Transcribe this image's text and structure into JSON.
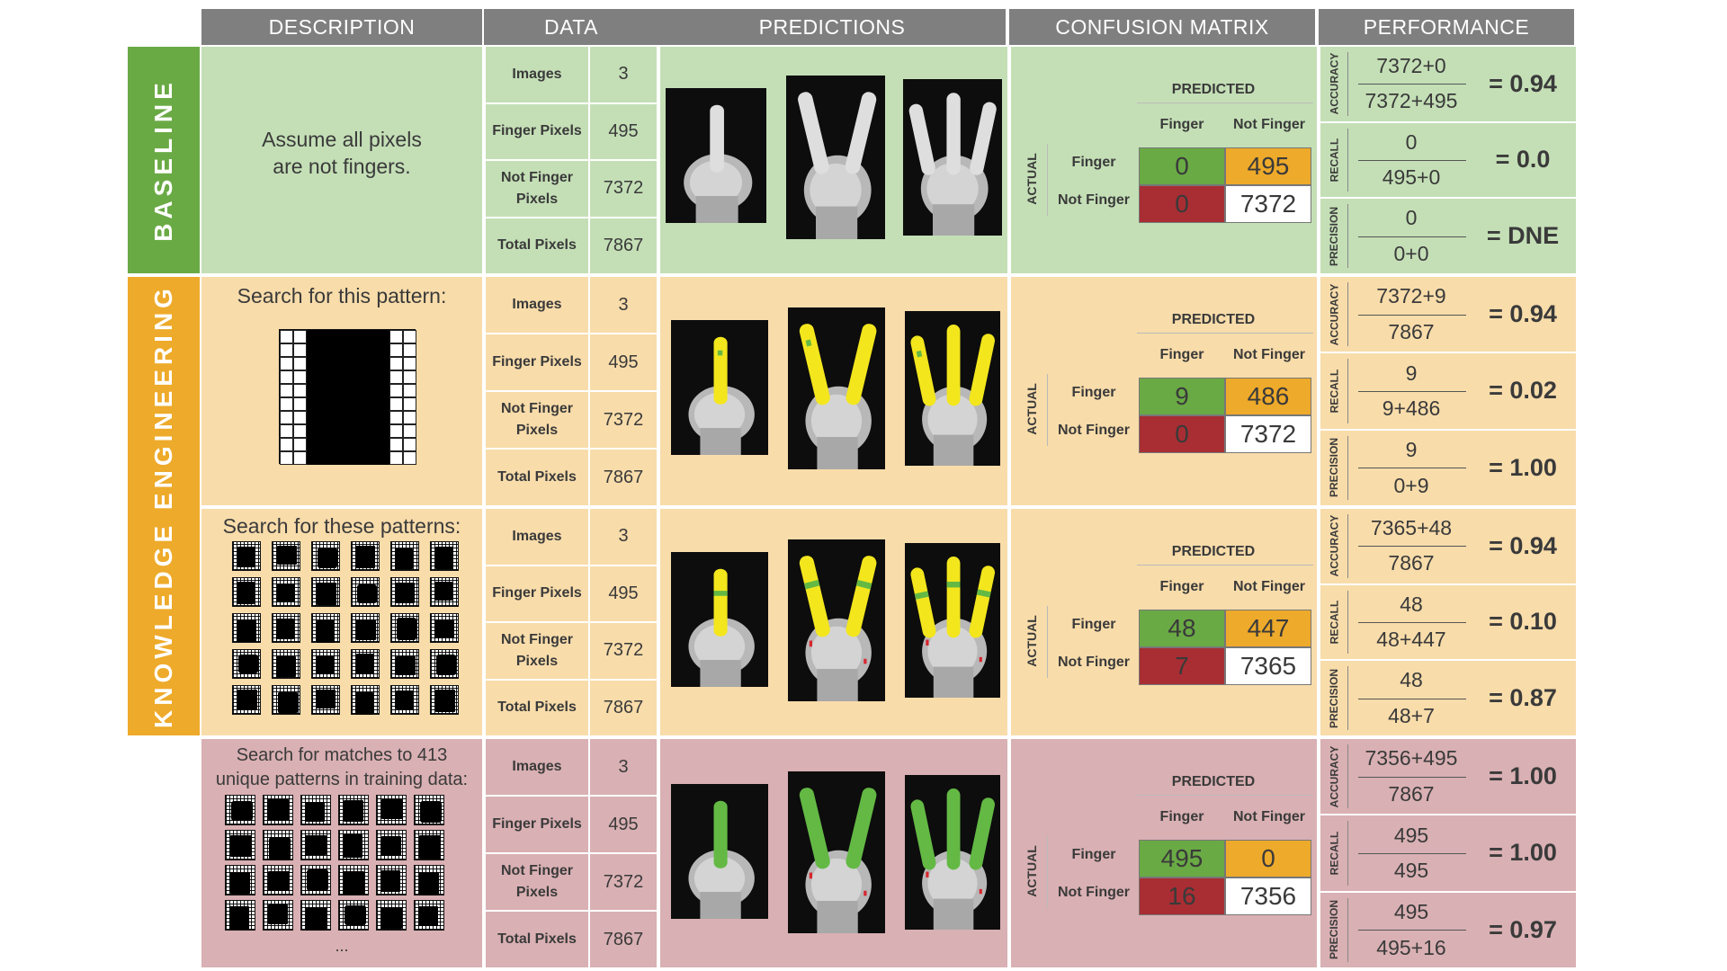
{
  "headers": [
    "DESCRIPTION",
    "DATA",
    "PREDICTIONS",
    "CONFUSION MATRIX",
    "PERFORMANCE"
  ],
  "side_labels": {
    "baseline": "BASELINE",
    "knowledge": "KNOWLEDGE ENGINEERING"
  },
  "colors": {
    "header": "#7f7f7f",
    "baseline_side": "#6aaa45",
    "ke_side": "#eeaa2a",
    "baseline_bg": "#c4dfb6",
    "ke_bg": "#f8dcaa",
    "ml_bg": "#d9b0b3",
    "tp": "#6aaa45",
    "fn": "#eeaa2a",
    "fp": "#a82e33",
    "tn": "#ffffff",
    "pred_yellow": "#f3e61d",
    "pred_green": "#63b944",
    "pred_red": "#d8262e"
  },
  "data_labels": {
    "images": "Images",
    "finger": "Finger Pixels",
    "not_finger": "Not Finger Pixels",
    "total": "Total Pixels"
  },
  "cm_labels": {
    "predicted": "PREDICTED",
    "actual": "ACTUAL",
    "finger": "Finger",
    "not_finger": "Not Finger"
  },
  "perf_labels": {
    "accuracy": "ACCURACY",
    "recall": "RECALL",
    "precision": "PRECISION"
  },
  "rows": [
    {
      "description": "Assume all pixels are not fingers.",
      "data": {
        "images": "3",
        "finger": "495",
        "not_finger": "7372",
        "total": "7867"
      },
      "cm": {
        "tp": "0",
        "fn": "495",
        "fp": "0",
        "tn": "7372"
      },
      "perf": {
        "accuracy": {
          "num": "7372+0",
          "den": "7372+495",
          "result": "= 0.94"
        },
        "recall": {
          "num": "0",
          "den": "495+0",
          "result": "= 0.0"
        },
        "precision": {
          "num": "0",
          "den": "0+0",
          "result": "= DNE"
        }
      }
    },
    {
      "description": "Search for this pattern:",
      "data": {
        "images": "3",
        "finger": "495",
        "not_finger": "7372",
        "total": "7867"
      },
      "cm": {
        "tp": "9",
        "fn": "486",
        "fp": "0",
        "tn": "7372"
      },
      "perf": {
        "accuracy": {
          "num": "7372+9",
          "den": "7867",
          "result": "= 0.94"
        },
        "recall": {
          "num": "9",
          "den": "9+486",
          "result": "= 0.02"
        },
        "precision": {
          "num": "9",
          "den": "0+9",
          "result": "= 1.00"
        }
      }
    },
    {
      "description": "Search for these patterns:",
      "data": {
        "images": "3",
        "finger": "495",
        "not_finger": "7372",
        "total": "7867"
      },
      "cm": {
        "tp": "48",
        "fn": "447",
        "fp": "7",
        "tn": "7365"
      },
      "perf": {
        "accuracy": {
          "num": "7365+48",
          "den": "7867",
          "result": "= 0.94"
        },
        "recall": {
          "num": "48",
          "den": "48+447",
          "result": "= 0.10"
        },
        "precision": {
          "num": "48",
          "den": "48+7",
          "result": "= 0.87"
        }
      }
    },
    {
      "description": "Search for matches to 413 unique patterns in training data:",
      "ellipsis": "...",
      "data": {
        "images": "3",
        "finger": "495",
        "not_finger": "7372",
        "total": "7867"
      },
      "cm": {
        "tp": "495",
        "fn": "0",
        "fp": "16",
        "tn": "7356"
      },
      "perf": {
        "accuracy": {
          "num": "7356+495",
          "den": "7867",
          "result": "= 1.00"
        },
        "recall": {
          "num": "495",
          "den": "495",
          "result": "= 1.00"
        },
        "precision": {
          "num": "495",
          "den": "495+16",
          "result": "= 0.97"
        }
      }
    }
  ]
}
